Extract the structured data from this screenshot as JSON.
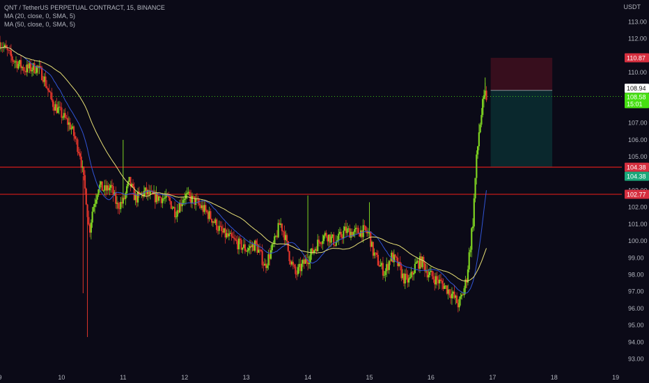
{
  "legend": {
    "symbol_line": "QNT / TetherUS PERPETUAL CONTRACT, 15, BINANCE",
    "ma20": "MA (20, close, 0, SMA, 5)",
    "ma50": "MA (50, close, 0, SMA, 5)"
  },
  "unit": "USDT",
  "colors": {
    "background": "#0b0a17",
    "up": "#7ed321",
    "down": "#e0352b",
    "ma20": "#3155d6",
    "ma50": "#e8e076",
    "stop_zone": "#3a0f1e",
    "target_zone": "#0b2a2e",
    "hline": "#c21a1a"
  },
  "price_labels": {
    "stop": {
      "value": "110.87",
      "color": "#d62f3f"
    },
    "entry": {
      "value": "108.94",
      "color": "#ffffff"
    },
    "last": {
      "value": "108.58",
      "sub": "15:01",
      "color": "#45e011"
    },
    "line1_red": {
      "value": "104.38",
      "color": "#d62f3f"
    },
    "line1_green": {
      "value": "104.38",
      "color": "#1aa87a"
    },
    "line2": {
      "value": "102.77",
      "color": "#d62f3f"
    }
  },
  "chart_data": {
    "type": "candlestick",
    "title": "QNT / TetherUS PERPETUAL CONTRACT, 15, BINANCE",
    "x_ticks": [
      "9",
      "10",
      "11",
      "12",
      "13",
      "14",
      "15",
      "16",
      "17",
      "18",
      "19"
    ],
    "xlim": [
      9.0,
      19.1
    ],
    "y_ticks": [
      "93.00",
      "94.00",
      "95.00",
      "96.00",
      "97.00",
      "98.00",
      "99.00",
      "100.00",
      "101.00",
      "102.00",
      "103.00",
      "105.00",
      "106.00",
      "107.00",
      "110.00",
      "111.00",
      "112.00",
      "113.00"
    ],
    "ylim": [
      92.4,
      114.3
    ],
    "horizontal_lines": [
      104.38,
      102.77
    ],
    "last_price": 108.58,
    "position": {
      "x_start": 16.97,
      "x_end": 17.97,
      "stop": 110.87,
      "entry": 108.94,
      "target": 104.38
    },
    "price_path": [
      [
        9.0,
        111.8
      ],
      [
        9.2,
        110.8
      ],
      [
        9.4,
        110.2
      ],
      [
        9.6,
        110.3
      ],
      [
        9.7,
        109.8
      ],
      [
        9.85,
        108.2
      ],
      [
        10.0,
        107.5
      ],
      [
        10.15,
        106.8
      ],
      [
        10.3,
        105.2
      ],
      [
        10.4,
        102.5
      ],
      [
        10.45,
        100.5
      ],
      [
        10.5,
        101.8
      ],
      [
        10.6,
        103.3
      ],
      [
        10.7,
        103.0
      ],
      [
        10.8,
        103.2
      ],
      [
        10.9,
        102.1
      ],
      [
        11.0,
        102.3
      ],
      [
        11.1,
        103.5
      ],
      [
        11.2,
        102.5
      ],
      [
        11.35,
        102.9
      ],
      [
        11.5,
        102.6
      ],
      [
        11.6,
        102.6
      ],
      [
        11.75,
        102.4
      ],
      [
        11.85,
        101.7
      ],
      [
        12.0,
        102.7
      ],
      [
        12.15,
        102.4
      ],
      [
        12.3,
        101.9
      ],
      [
        12.45,
        101.3
      ],
      [
        12.6,
        100.5
      ],
      [
        12.8,
        100.0
      ],
      [
        13.0,
        99.5
      ],
      [
        13.15,
        99.8
      ],
      [
        13.25,
        99.0
      ],
      [
        13.3,
        98.5
      ],
      [
        13.45,
        99.8
      ],
      [
        13.55,
        101.1
      ],
      [
        13.62,
        100.4
      ],
      [
        13.7,
        99.1
      ],
      [
        13.8,
        98.0
      ],
      [
        13.9,
        98.5
      ],
      [
        14.05,
        99.2
      ],
      [
        14.2,
        100.1
      ],
      [
        14.3,
        100.4
      ],
      [
        14.45,
        99.9
      ],
      [
        14.6,
        100.6
      ],
      [
        14.75,
        100.5
      ],
      [
        14.9,
        100.6
      ],
      [
        15.0,
        100.4
      ],
      [
        15.05,
        99.4
      ],
      [
        15.15,
        98.7
      ],
      [
        15.25,
        98.1
      ],
      [
        15.35,
        99.1
      ],
      [
        15.45,
        98.7
      ],
      [
        15.55,
        97.8
      ],
      [
        15.65,
        97.6
      ],
      [
        15.75,
        98.6
      ],
      [
        15.85,
        98.8
      ],
      [
        15.95,
        98.1
      ],
      [
        16.05,
        97.8
      ],
      [
        16.2,
        97.4
      ],
      [
        16.35,
        96.8
      ],
      [
        16.45,
        96.2
      ],
      [
        16.52,
        96.9
      ],
      [
        16.58,
        97.8
      ],
      [
        16.63,
        99.5
      ],
      [
        16.68,
        101.2
      ],
      [
        16.73,
        104.3
      ],
      [
        16.78,
        106.5
      ],
      [
        16.83,
        107.8
      ],
      [
        16.88,
        108.6
      ],
      [
        16.9,
        108.6
      ]
    ],
    "spikes": [
      {
        "x": 10.42,
        "low": 94.3
      },
      {
        "x": 10.35,
        "low": 96.9
      },
      {
        "x": 11.0,
        "high": 106.0
      },
      {
        "x": 14.0,
        "high": 102.7
      },
      {
        "x": 15.0,
        "high": 102.3
      },
      {
        "x": 16.88,
        "high": 109.7
      }
    ]
  }
}
